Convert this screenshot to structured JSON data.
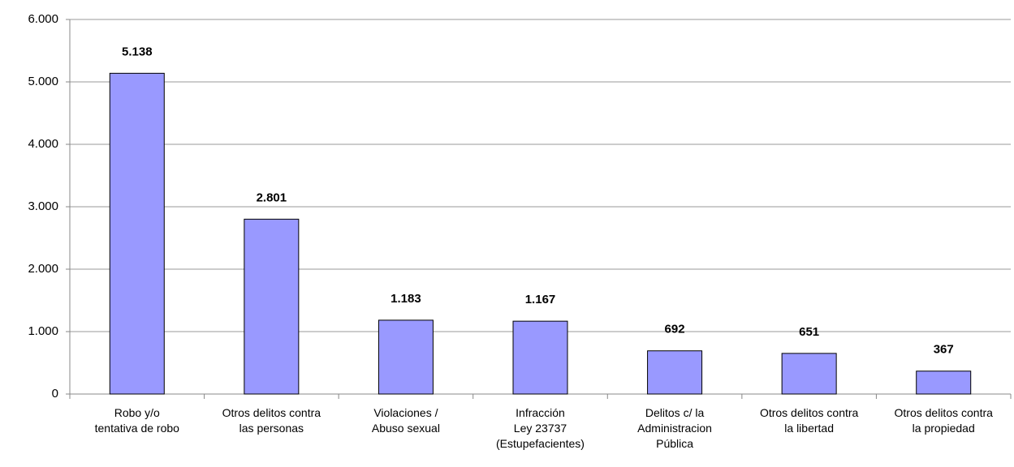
{
  "chart_data": {
    "type": "bar",
    "categories": [
      "Robo y/o\ntentativa de robo",
      "Otros delitos contra\nlas personas",
      "Violaciones /\nAbuso sexual",
      "Infracción\nLey 23737\n(Estupefacientes)",
      "Delitos c/ la\nAdministracion\nPública",
      "Otros delitos contra\nla libertad",
      "Otros delitos contra\nla propiedad"
    ],
    "values": [
      5138,
      2801,
      1183,
      1167,
      692,
      651,
      367
    ],
    "value_labels": [
      "5.138",
      "2.801",
      "1.183",
      "1.167",
      "692",
      "651",
      "367"
    ],
    "color": "#9999ff",
    "ylim": [
      0,
      6000
    ],
    "yticks": [
      0,
      {
        "value": 1000,
        "label": "1.000"
      },
      {
        "value": 2000,
        "label": "2.000"
      },
      {
        "value": 3000,
        "label": "3.000"
      },
      {
        "value": 4000,
        "label": "4.000"
      },
      {
        "value": 5000,
        "label": "5.000"
      },
      {
        "value": 6000,
        "label": "6.000"
      }
    ],
    "grid": true
  }
}
